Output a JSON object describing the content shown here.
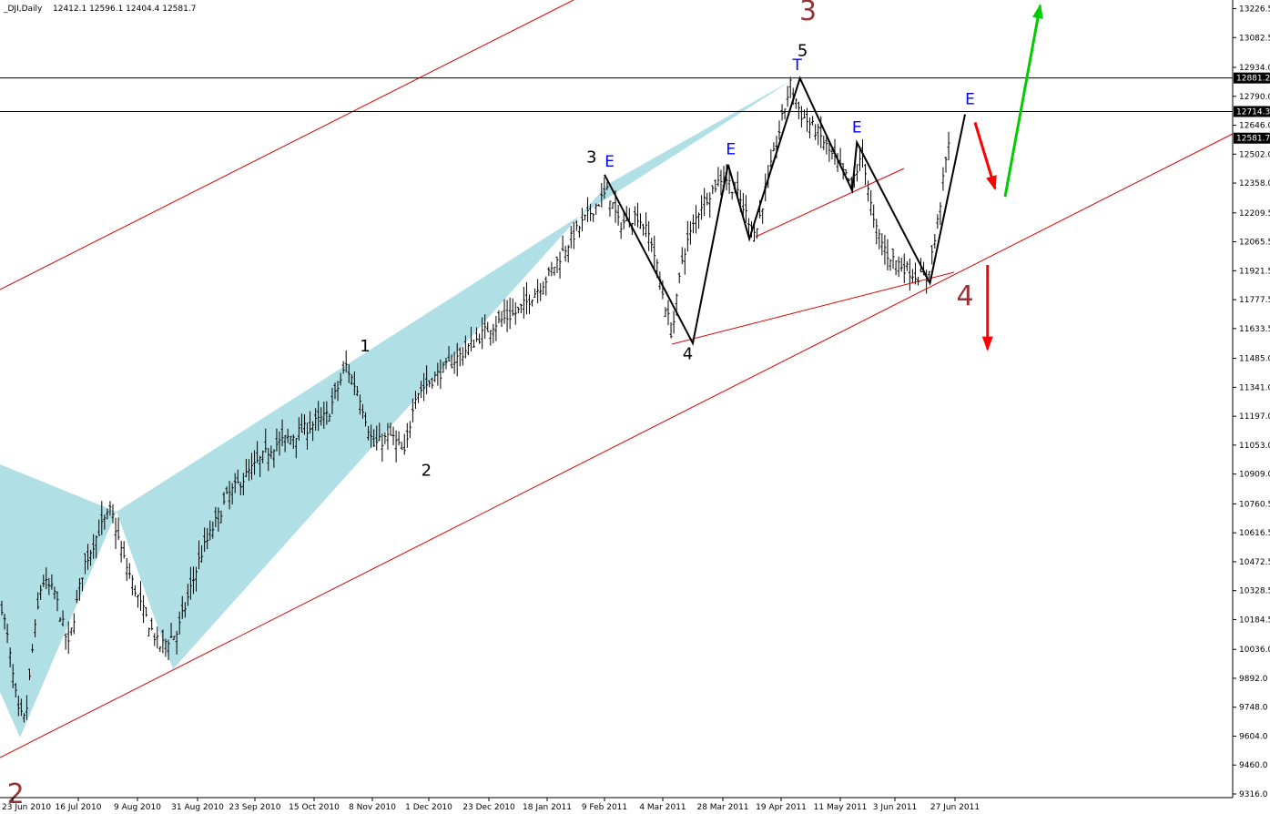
{
  "chart_data": {
    "type": "line",
    "title": "_DJI,Daily",
    "ohlc_header": "12412.1 12596.1 12404.4 12581.7",
    "price_axis": {
      "ylim": [
        9316.0,
        13250.0
      ],
      "ticks": [
        "13226.5",
        "13082.5",
        "12934.0",
        "12790.0",
        "12646.0",
        "12502.0",
        "12358.0",
        "12209.5",
        "12065.5",
        "11921.5",
        "11777.5",
        "11633.5",
        "11485.0",
        "11341.0",
        "11197.0",
        "11053.0",
        "10909.0",
        "10760.5",
        "10616.5",
        "10472.5",
        "10328.5",
        "10184.5",
        "10036.0",
        "9892.0",
        "9748.0",
        "9604.0",
        "9460.0",
        "9316.0"
      ],
      "marked_prices": [
        {
          "label": "12881.2",
          "value": 12881.2,
          "color": "#000000"
        },
        {
          "label": "12714.3",
          "value": 12714.3,
          "color": "#000000"
        },
        {
          "label": "12581.7",
          "value": 12581.7,
          "color": "#000000"
        }
      ]
    },
    "time_axis": {
      "labels": [
        "23 Jun 2010",
        "16 Jul 2010",
        "9 Aug 2010",
        "31 Aug 2010",
        "23 Sep 2010",
        "15 Oct 2010",
        "8 Nov 2010",
        "1 Dec 2010",
        "23 Dec 2010",
        "18 Jan 2011",
        "9 Feb 2011",
        "4 Mar 2011",
        "28 Mar 2011",
        "19 Apr 2011",
        "11 May 2011",
        "3 Jun 2011",
        "27 Jun 2011"
      ]
    },
    "horizontal_lines": [
      12881.2,
      12714.3
    ],
    "wave_path": [
      {
        "x": "9 Feb 2011",
        "y": 12400
      },
      {
        "x": "16 Mar 2011",
        "y": 11560
      },
      {
        "x": "30 Mar 2011",
        "y": 12450
      },
      {
        "x": "7 Apr 2011",
        "y": 12080
      },
      {
        "x": "26 Apr 2011",
        "y": 12880
      },
      {
        "x": "16 May 2011",
        "y": 12320
      },
      {
        "x": "18 May 2011",
        "y": 12560
      },
      {
        "x": "17 Jun 2011",
        "y": 11860
      },
      {
        "x": "1 Jul 2011",
        "y": 12700
      }
    ],
    "wave_labels": [
      {
        "text": "1",
        "x": "5 Nov 2010",
        "y": 11520,
        "style": "black"
      },
      {
        "text": "2",
        "x": "30 Nov 2010",
        "y": 10900,
        "style": "black"
      },
      {
        "text": "3",
        "x": "4 Feb 2011",
        "y": 12460,
        "style": "black"
      },
      {
        "text": "4",
        "x": "14 Mar 2011",
        "y": 11480,
        "style": "black"
      },
      {
        "text": "5",
        "x": "27 Apr 2011",
        "y": 12990,
        "style": "black"
      },
      {
        "text": "3",
        "x": "29 Apr 2011",
        "y": 13170,
        "style": "red"
      },
      {
        "text": "4",
        "x": "1 Jul 2011",
        "y": 11750,
        "style": "red"
      },
      {
        "text": "2",
        "x": "24 Jun 2010",
        "y": 9270,
        "style": "red"
      }
    ],
    "e_labels": [
      {
        "text": "E",
        "x": "11 Feb 2011",
        "y": 12440
      },
      {
        "text": "E",
        "x": "31 Mar 2011",
        "y": 12500
      },
      {
        "text": "T",
        "x": "25 Apr 2011",
        "y": 12920
      },
      {
        "text": "E",
        "x": "18 May 2011",
        "y": 12610
      },
      {
        "text": "E",
        "x": "3 Jul 2011",
        "y": 12750
      }
    ],
    "arrows": [
      {
        "color": "#ff0000",
        "from": {
          "x": "5 Jul 2011",
          "y": 12660
        },
        "to": {
          "x": "13 Jul 2011",
          "y": 12330
        }
      },
      {
        "color": "#ff0000",
        "from": {
          "x": "10 Jul 2011",
          "y": 11950
        },
        "to": {
          "x": "10 Jul 2011",
          "y": 11530
        }
      },
      {
        "color": "#00cc00",
        "from": {
          "x": "17 Jul 2011",
          "y": 12290
        },
        "to": {
          "x": "31 Jul 2011",
          "y": 13250
        }
      }
    ],
    "colors": {
      "candles": "#000000",
      "channel": "#dd0000",
      "fill": "#b0e0e6",
      "wave": "#000000",
      "e_label": "#0000ff",
      "wave_red": "#993333"
    }
  }
}
